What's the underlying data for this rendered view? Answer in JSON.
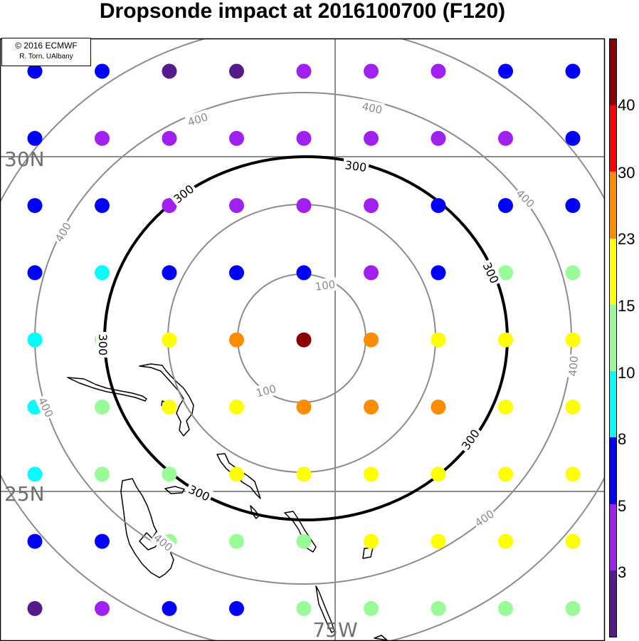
{
  "title": "Dropsonde impact at 2016100700 (F120)",
  "credit": {
    "line1": "© 2016 ECMWF",
    "line2": "R. Torn, UAlbany"
  },
  "graticule_labels": {
    "lat_30": "30N",
    "lat_25": "25N",
    "lon_75": "75W"
  },
  "contours": {
    "distance_labels": [
      "100",
      "300",
      "400"
    ],
    "levels": [
      100,
      200,
      300,
      400,
      500
    ],
    "highlighted_level": 300,
    "thin_color": "#8c8c8c",
    "highlight_color": "#000000"
  },
  "colorbar": {
    "tick_labels": [
      "40",
      "30",
      "23",
      "15",
      "10",
      "8",
      "5",
      "3"
    ],
    "colors": [
      "#8b0000",
      "#ff0000",
      "#ff8c00",
      "#ffff00",
      "#98fb98",
      "#00ffff",
      "#0000ff",
      "#a020f0",
      "#551a8b"
    ]
  },
  "dots": {
    "rows": [
      [
        "blue",
        "blue",
        "indigo",
        "indigo",
        "purple",
        "purple",
        "purple",
        "blue",
        "blue"
      ],
      [
        "blue",
        "purple",
        "purple",
        "purple",
        "purple",
        "purple",
        "purple",
        "purple",
        "blue"
      ],
      [
        "blue",
        "blue",
        "purple",
        "purple",
        "purple",
        "purple",
        "blue",
        "blue",
        "blue"
      ],
      [
        "blue",
        "cyan",
        "blue",
        "blue",
        "blue",
        "purple",
        "blue",
        "green",
        "green"
      ],
      [
        "cyan",
        "green",
        "yellow",
        "orange",
        "darkred",
        "orange",
        "yellow",
        "yellow",
        "yellow"
      ],
      [
        "cyan",
        "green",
        "yellow",
        "yellow",
        "orange",
        "orange",
        "orange",
        "yellow",
        "yellow"
      ],
      [
        "cyan",
        "green",
        "green",
        "yellow",
        "yellow",
        "yellow",
        "yellow",
        "yellow",
        "yellow"
      ],
      [
        "blue",
        "blue",
        "green",
        "green",
        "green",
        "yellow",
        "yellow",
        "yellow",
        "yellow"
      ],
      [
        "indigo",
        "purple",
        "blue",
        "blue",
        "green",
        "green",
        "green",
        "green",
        "green"
      ]
    ],
    "palette": {
      "darkred": "#8b0000",
      "orange": "#ff8c00",
      "yellow": "#ffff00",
      "green": "#98fb98",
      "cyan": "#00ffff",
      "blue": "#0000ff",
      "purple": "#a020f0",
      "indigo": "#551a8b"
    }
  }
}
